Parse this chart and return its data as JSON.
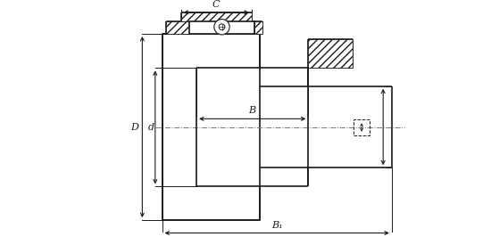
{
  "bg_color": "#ffffff",
  "line_color": "#1a1a1a",
  "dim_color": "#1a1a1a",
  "fig_width": 5.5,
  "fig_height": 2.75,
  "dpi": 100,
  "labels": {
    "C": "C",
    "B": "B",
    "B1": "B₁",
    "D": "D",
    "d": "d"
  }
}
